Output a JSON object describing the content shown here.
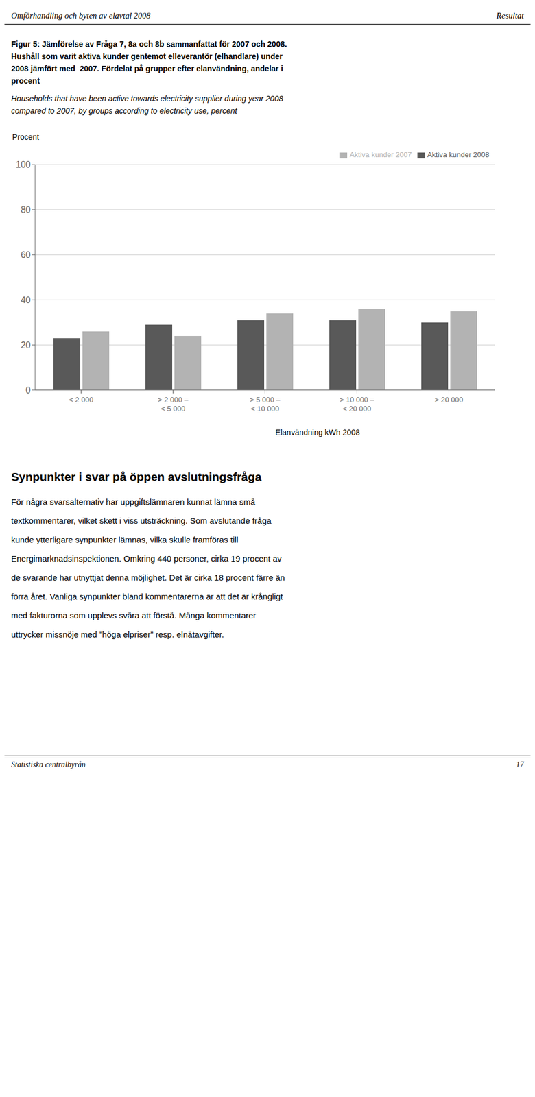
{
  "chart_data": {
    "type": "bar",
    "header": [
      "Omförhandling och byten av elavtal 2008",
      "Resultat"
    ],
    "title": [
      "Figur 5: Jämförelse av Fråga 7, 8a och 8b sammanfattat för 2007 och 2008.",
      "Hushåll som varit aktiva kunder gentemot elleverantör (elhandlare) under",
      "2008 jämfört med  2007. Fördelat på grupper efter elanvändning, andelar i",
      "procent"
    ],
    "subtitle": [
      "Households that have been active towards electricity supplier during year 2008",
      "compared to 2007, by groups according to electricity use, percent"
    ],
    "ylabel": "Procent",
    "xlabel": "Elanvändning kWh 2008",
    "categories": [
      "< 2 000",
      "> 2 000 –\n< 5 000",
      "> 5 000 –\n< 10 000",
      "> 10 000 –\n< 20 000",
      "> 20 000"
    ],
    "series": [
      {
        "name": "Aktiva kunder 2008",
        "color": "#595959",
        "values": [
          23,
          29,
          31,
          31,
          30
        ]
      },
      {
        "name": "Aktiva kunder 2007",
        "color": "#b3b3b3",
        "values": [
          26,
          24,
          34,
          36,
          35
        ]
      }
    ],
    "ylim": [
      0,
      100
    ],
    "yticks": [
      0,
      20,
      40,
      60,
      80,
      100
    ],
    "grid": true,
    "legend": "upper right",
    "heading": "Synpunkter i svar på öppen avslutningsfråga",
    "body": [
      "För några svarsalternativ har uppgiftslämnaren kunnat lämna små",
      "textkommentarer, vilket skett i viss utsträckning. Som avslutande fråga",
      "kunde ytterligare synpunkter lämnas, vilka skulle framföras till",
      "Energimarknadsinspektionen. Omkring 440 personer, cirka 19 procent av",
      "de svarande har utnyttjat denna möjlighet. Det är cirka 18 procent färre än",
      "förra året. Vanliga synpunkter bland kommentarerna är att det är krångligt",
      "med fakturorna som upplevs svåra att förstå. Många kommentarer",
      "uttrycker missnöje med ”höga elpriser” resp. elnätavgifter."
    ],
    "footer": [
      "Statistiska centralbyrån",
      "17"
    ]
  }
}
